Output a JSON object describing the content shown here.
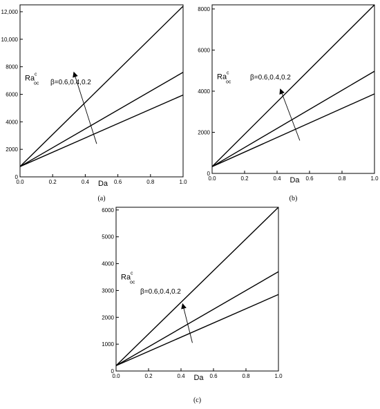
{
  "chart_data": [
    {
      "type": "line",
      "caption": "(a)",
      "xlabel": "Da",
      "ylabel": "Ra",
      "ylabel_sup": "c",
      "ylabel_sub": "oc",
      "annotation": "β=0.6,0.4,0.2",
      "xlim": [
        0,
        1
      ],
      "ylim": [
        0,
        12500
      ],
      "xticks": [
        0.0,
        0.2,
        0.4,
        0.6,
        0.8,
        1.0
      ],
      "xtick_labels": [
        "0.0",
        "0.2",
        "0.4",
        "0.6",
        "0.8",
        "1.0"
      ],
      "yticks": [
        0,
        2000,
        4000,
        6000,
        8000,
        10000,
        12000
      ],
      "ytick_labels": [
        "0",
        "2000",
        "4000",
        "6000",
        "8000",
        "10,000",
        "12,000"
      ],
      "series": [
        {
          "x": [
            0,
            1
          ],
          "values": [
            750,
            12400
          ]
        },
        {
          "x": [
            0,
            1
          ],
          "values": [
            750,
            7600
          ]
        },
        {
          "x": [
            0,
            1
          ],
          "values": [
            750,
            5950
          ]
        }
      ],
      "arrow": {
        "from": [
          0.47,
          2400
        ],
        "to": [
          0.33,
          7600
        ]
      }
    },
    {
      "type": "line",
      "caption": "(b)",
      "xlabel": "Da",
      "ylabel": "Ra",
      "ylabel_sup": "c",
      "ylabel_sub": "oc",
      "annotation": "β=0.6,0.4,0.2",
      "xlim": [
        0,
        1
      ],
      "ylim": [
        0,
        8200
      ],
      "xticks": [
        0.0,
        0.2,
        0.4,
        0.6,
        0.8,
        1.0
      ],
      "xtick_labels": [
        "0.0",
        "0.2",
        "0.4",
        "0.6",
        "0.8",
        "1.0"
      ],
      "yticks": [
        0,
        2000,
        4000,
        6000,
        8000
      ],
      "ytick_labels": [
        "0",
        "2000",
        "4000",
        "6000",
        "8000"
      ],
      "series": [
        {
          "x": [
            0,
            1
          ],
          "values": [
            330,
            8200
          ]
        },
        {
          "x": [
            0,
            1
          ],
          "values": [
            330,
            4970
          ]
        },
        {
          "x": [
            0,
            1
          ],
          "values": [
            330,
            3870
          ]
        }
      ],
      "arrow": {
        "from": [
          0.54,
          1600
        ],
        "to": [
          0.42,
          4100
        ]
      }
    },
    {
      "type": "line",
      "caption": "(c)",
      "xlabel": "Da",
      "ylabel": "Ra",
      "ylabel_sup": "c",
      "ylabel_sub": "oc",
      "annotation": "β=0.6,0.4,0.2",
      "xlim": [
        0,
        1
      ],
      "ylim": [
        0,
        6100
      ],
      "xticks": [
        0.0,
        0.2,
        0.4,
        0.6,
        0.8,
        1.0
      ],
      "xtick_labels": [
        "0.0",
        "0.2",
        "0.4",
        "0.6",
        "0.8",
        "1.0"
      ],
      "yticks": [
        0,
        1000,
        2000,
        3000,
        4000,
        5000,
        6000
      ],
      "ytick_labels": [
        "0",
        "1000",
        "2000",
        "3000",
        "4000",
        "5000",
        "6000"
      ],
      "series": [
        {
          "x": [
            0,
            1
          ],
          "values": [
            200,
            6100
          ]
        },
        {
          "x": [
            0,
            1
          ],
          "values": [
            200,
            3700
          ]
        },
        {
          "x": [
            0,
            1
          ],
          "values": [
            200,
            2850
          ]
        }
      ],
      "arrow": {
        "from": [
          0.47,
          1050
        ],
        "to": [
          0.41,
          2500
        ]
      }
    }
  ]
}
